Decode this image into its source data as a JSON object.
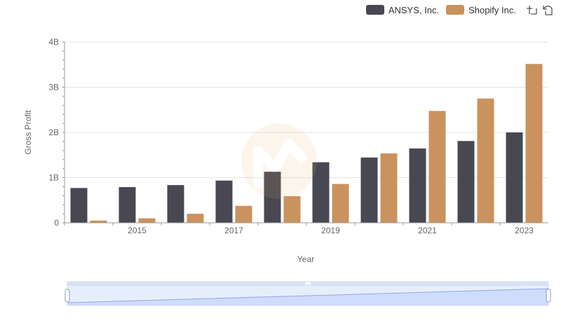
{
  "chart_data": {
    "type": "bar",
    "title": "",
    "xlabel": "Year",
    "ylabel": "Gross Profit",
    "categories": [
      "2014",
      "2015",
      "2016",
      "2017",
      "2018",
      "2019",
      "2020",
      "2021",
      "2022",
      "2023"
    ],
    "x_tick_labels": [
      "2015",
      "2017",
      "2019",
      "2021",
      "2023"
    ],
    "y_tick_labels": [
      "0",
      "1B",
      "2B",
      "3B",
      "4B"
    ],
    "ylim": [
      0,
      4000000000
    ],
    "series": [
      {
        "name": "ANSYS, Inc.",
        "color": "#484853",
        "values": [
          770000000,
          790000000,
          835000000,
          935000000,
          1130000000,
          1340000000,
          1445000000,
          1645000000,
          1810000000,
          2000000000
        ]
      },
      {
        "name": "Shopify Inc.",
        "color": "#c9925e",
        "values": [
          50000000,
          100000000,
          200000000,
          375000000,
          590000000,
          860000000,
          1535000000,
          2475000000,
          2750000000,
          3515000000
        ]
      }
    ],
    "legend_position": "top-right"
  },
  "toolbar": {
    "zoom_icon": "zoom-icon",
    "restore_icon": "restore-icon"
  }
}
